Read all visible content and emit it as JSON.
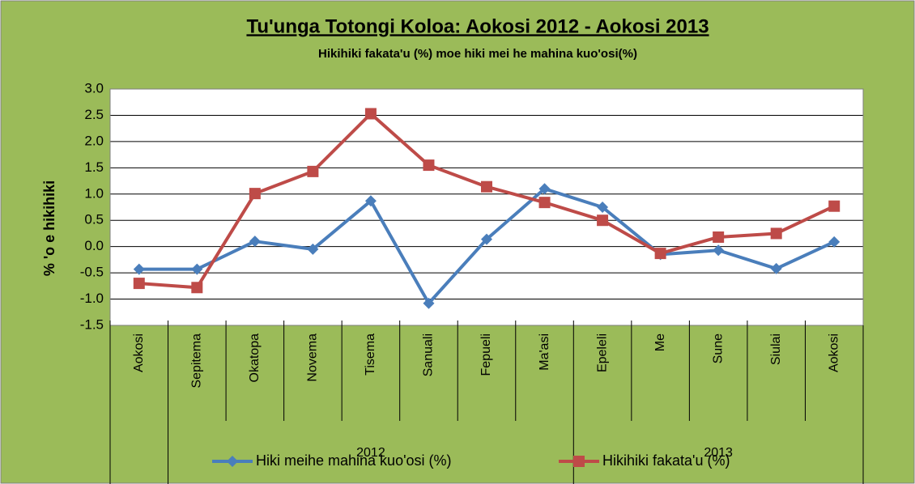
{
  "chart_data": {
    "type": "line",
    "title": "Tu'unga Totongi Koloa: Aokosi 2012 - Aokosi 2013",
    "subtitle": "Hikihiki fakata'u (%) moe hiki mei he mahina kuo'osi(%)",
    "y_label": "% 'o e hikihiki",
    "categories": [
      "Aokosi",
      "Sepitema",
      "Okatopa",
      "Novema",
      "Tisema",
      "Sanuali",
      "Fepueli",
      "Ma'asi",
      "Epeleli",
      "Me",
      "Sune",
      "Siulai",
      "Aokosi"
    ],
    "groups": [
      {
        "label": "2012",
        "first": 1,
        "last": 7
      },
      {
        "label": "2013",
        "first": 8,
        "last": 12
      }
    ],
    "series": [
      {
        "name": "Hiki meihe mahina kuo'osi (%)",
        "color": "#4a7ebb",
        "marker": "diamond",
        "values": [
          -0.43,
          -0.43,
          0.1,
          -0.05,
          0.87,
          -1.08,
          0.14,
          1.1,
          0.75,
          -0.15,
          -0.07,
          -0.42,
          0.09
        ]
      },
      {
        "name": "Hikihiki fakata'u (%)",
        "color": "#be4b48",
        "marker": "square",
        "values": [
          -0.7,
          -0.78,
          1.01,
          1.43,
          2.53,
          1.55,
          1.14,
          0.84,
          0.5,
          -0.13,
          0.18,
          0.25,
          0.77
        ]
      }
    ],
    "ylim": [
      -1.5,
      3.0
    ],
    "yticks": [
      {
        "value": -1.5,
        "label": "-1.5"
      },
      {
        "value": -1.0,
        "label": "-1.0"
      },
      {
        "value": -0.5,
        "label": "-0.5"
      },
      {
        "value": 0,
        "label": "0.0"
      },
      {
        "value": 0.5,
        "label": "0.5"
      },
      {
        "value": 1.0,
        "label": "1.0"
      },
      {
        "value": 1.5,
        "label": "1.5"
      },
      {
        "value": 2.0,
        "label": "2.0"
      },
      {
        "value": 2.5,
        "label": "2.5"
      },
      {
        "value": 3.0,
        "label": "3.0"
      }
    ],
    "grid": true,
    "legend": "bottom"
  }
}
